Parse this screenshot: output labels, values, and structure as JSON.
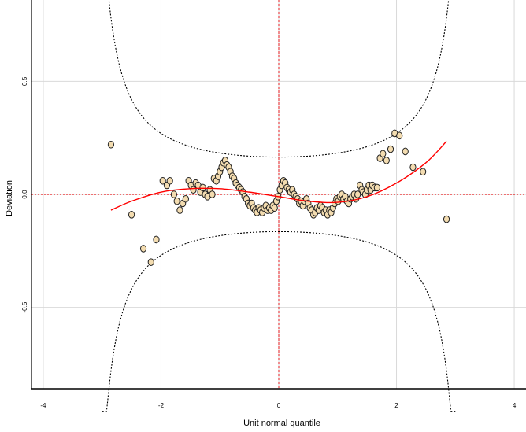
{
  "chart_data": {
    "type": "scatter",
    "title": "",
    "xlabel": "Unit normal quantile",
    "ylabel": "Deviation",
    "xlim": [
      -4.2,
      4.2
    ],
    "ylim": [
      -0.86,
      0.86
    ],
    "x_ticks": [
      -4,
      -2,
      0,
      2,
      4
    ],
    "x_tick_labels": [
      "-4",
      "-2",
      "0",
      "2",
      "4"
    ],
    "y_ticks": [
      -0.5,
      0.0,
      0.5
    ],
    "y_tick_labels": [
      "-0.5",
      "0.0",
      "0.5"
    ],
    "grid": true,
    "reference_lines": {
      "vertical_x": 0,
      "horizontal_y": 0,
      "color": "#e31a1c"
    },
    "confidence_band": {
      "center": 0,
      "half_width_at_zero": 0.165,
      "style": "dotted"
    },
    "fit_curve": {
      "color": "#ff0000",
      "x": [
        -2.85,
        -2.5,
        -2.0,
        -1.5,
        -1.0,
        -0.5,
        0.0,
        0.5,
        1.0,
        1.5,
        2.0,
        2.5,
        2.85
      ],
      "y": [
        -0.07,
        -0.03,
        0.01,
        0.025,
        0.025,
        0.01,
        -0.01,
        -0.03,
        -0.035,
        -0.01,
        0.05,
        0.14,
        0.235
      ]
    },
    "point_style": {
      "fill": "#f3dcb0",
      "stroke": "#222222"
    },
    "series": [
      {
        "points": [
          [
            -2.85,
            0.22
          ],
          [
            -2.5,
            -0.09
          ],
          [
            -2.3,
            -0.24
          ],
          [
            -2.17,
            -0.3
          ],
          [
            -2.08,
            -0.2
          ],
          [
            -1.97,
            0.06
          ],
          [
            -1.9,
            0.04
          ],
          [
            -1.85,
            0.06
          ],
          [
            -1.78,
            0.0
          ],
          [
            -1.73,
            -0.03
          ],
          [
            -1.68,
            -0.07
          ],
          [
            -1.63,
            -0.04
          ],
          [
            -1.58,
            -0.02
          ],
          [
            -1.53,
            0.06
          ],
          [
            -1.49,
            0.04
          ],
          [
            -1.45,
            0.02
          ],
          [
            -1.41,
            0.05
          ],
          [
            -1.37,
            0.04
          ],
          [
            -1.33,
            0.01
          ],
          [
            -1.29,
            0.03
          ],
          [
            -1.25,
            0.0
          ],
          [
            -1.21,
            -0.01
          ],
          [
            -1.17,
            0.02
          ],
          [
            -1.13,
            0.0
          ],
          [
            -1.1,
            0.07
          ],
          [
            -1.06,
            0.06
          ],
          [
            -1.03,
            0.08
          ],
          [
            -1.0,
            0.1
          ],
          [
            -0.97,
            0.12
          ],
          [
            -0.94,
            0.14
          ],
          [
            -0.91,
            0.15
          ],
          [
            -0.88,
            0.13
          ],
          [
            -0.85,
            0.12
          ],
          [
            -0.82,
            0.1
          ],
          [
            -0.79,
            0.08
          ],
          [
            -0.76,
            0.07
          ],
          [
            -0.73,
            0.05
          ],
          [
            -0.7,
            0.04
          ],
          [
            -0.67,
            0.03
          ],
          [
            -0.64,
            0.02
          ],
          [
            -0.61,
            0.01
          ],
          [
            -0.58,
            -0.01
          ],
          [
            -0.55,
            -0.02
          ],
          [
            -0.52,
            -0.04
          ],
          [
            -0.49,
            -0.05
          ],
          [
            -0.46,
            -0.04
          ],
          [
            -0.43,
            -0.06
          ],
          [
            -0.4,
            -0.07
          ],
          [
            -0.37,
            -0.08
          ],
          [
            -0.34,
            -0.06
          ],
          [
            -0.31,
            -0.07
          ],
          [
            -0.28,
            -0.08
          ],
          [
            -0.25,
            -0.06
          ],
          [
            -0.22,
            -0.05
          ],
          [
            -0.19,
            -0.07
          ],
          [
            -0.16,
            -0.06
          ],
          [
            -0.13,
            -0.07
          ],
          [
            -0.1,
            -0.05
          ],
          [
            -0.07,
            -0.06
          ],
          [
            -0.04,
            -0.03
          ],
          [
            -0.01,
            -0.01
          ],
          [
            0.02,
            0.02
          ],
          [
            0.05,
            0.04
          ],
          [
            0.08,
            0.06
          ],
          [
            0.11,
            0.05
          ],
          [
            0.14,
            0.03
          ],
          [
            0.17,
            0.02
          ],
          [
            0.2,
            0.01
          ],
          [
            0.23,
            0.02
          ],
          [
            0.26,
            0.0
          ],
          [
            0.29,
            -0.01
          ],
          [
            0.32,
            -0.02
          ],
          [
            0.35,
            -0.04
          ],
          [
            0.38,
            -0.03
          ],
          [
            0.41,
            -0.05
          ],
          [
            0.44,
            -0.03
          ],
          [
            0.47,
            -0.02
          ],
          [
            0.5,
            -0.04
          ],
          [
            0.53,
            -0.06
          ],
          [
            0.56,
            -0.07
          ],
          [
            0.59,
            -0.09
          ],
          [
            0.62,
            -0.08
          ],
          [
            0.65,
            -0.06
          ],
          [
            0.68,
            -0.07
          ],
          [
            0.71,
            -0.05
          ],
          [
            0.74,
            -0.06
          ],
          [
            0.77,
            -0.08
          ],
          [
            0.8,
            -0.07
          ],
          [
            0.83,
            -0.09
          ],
          [
            0.86,
            -0.07
          ],
          [
            0.89,
            -0.08
          ],
          [
            0.92,
            -0.06
          ],
          [
            0.95,
            -0.04
          ],
          [
            0.98,
            -0.02
          ],
          [
            1.01,
            -0.03
          ],
          [
            1.04,
            -0.01
          ],
          [
            1.07,
            0.0
          ],
          [
            1.1,
            -0.02
          ],
          [
            1.13,
            -0.01
          ],
          [
            1.16,
            -0.03
          ],
          [
            1.19,
            -0.04
          ],
          [
            1.22,
            -0.02
          ],
          [
            1.25,
            -0.01
          ],
          [
            1.28,
            0.0
          ],
          [
            1.31,
            -0.02
          ],
          [
            1.34,
            0.0
          ],
          [
            1.38,
            0.04
          ],
          [
            1.41,
            0.02
          ],
          [
            1.44,
            0.01
          ],
          [
            1.47,
            0.0
          ],
          [
            1.5,
            0.02
          ],
          [
            1.53,
            0.04
          ],
          [
            1.56,
            0.02
          ],
          [
            1.59,
            0.04
          ],
          [
            1.63,
            0.03
          ],
          [
            1.67,
            0.03
          ],
          [
            1.72,
            0.16
          ],
          [
            1.77,
            0.18
          ],
          [
            1.83,
            0.15
          ],
          [
            1.9,
            0.2
          ],
          [
            1.97,
            0.27
          ],
          [
            2.05,
            0.26
          ],
          [
            2.15,
            0.19
          ],
          [
            2.28,
            0.12
          ],
          [
            2.45,
            0.1
          ],
          [
            2.85,
            -0.11
          ]
        ]
      }
    ]
  }
}
